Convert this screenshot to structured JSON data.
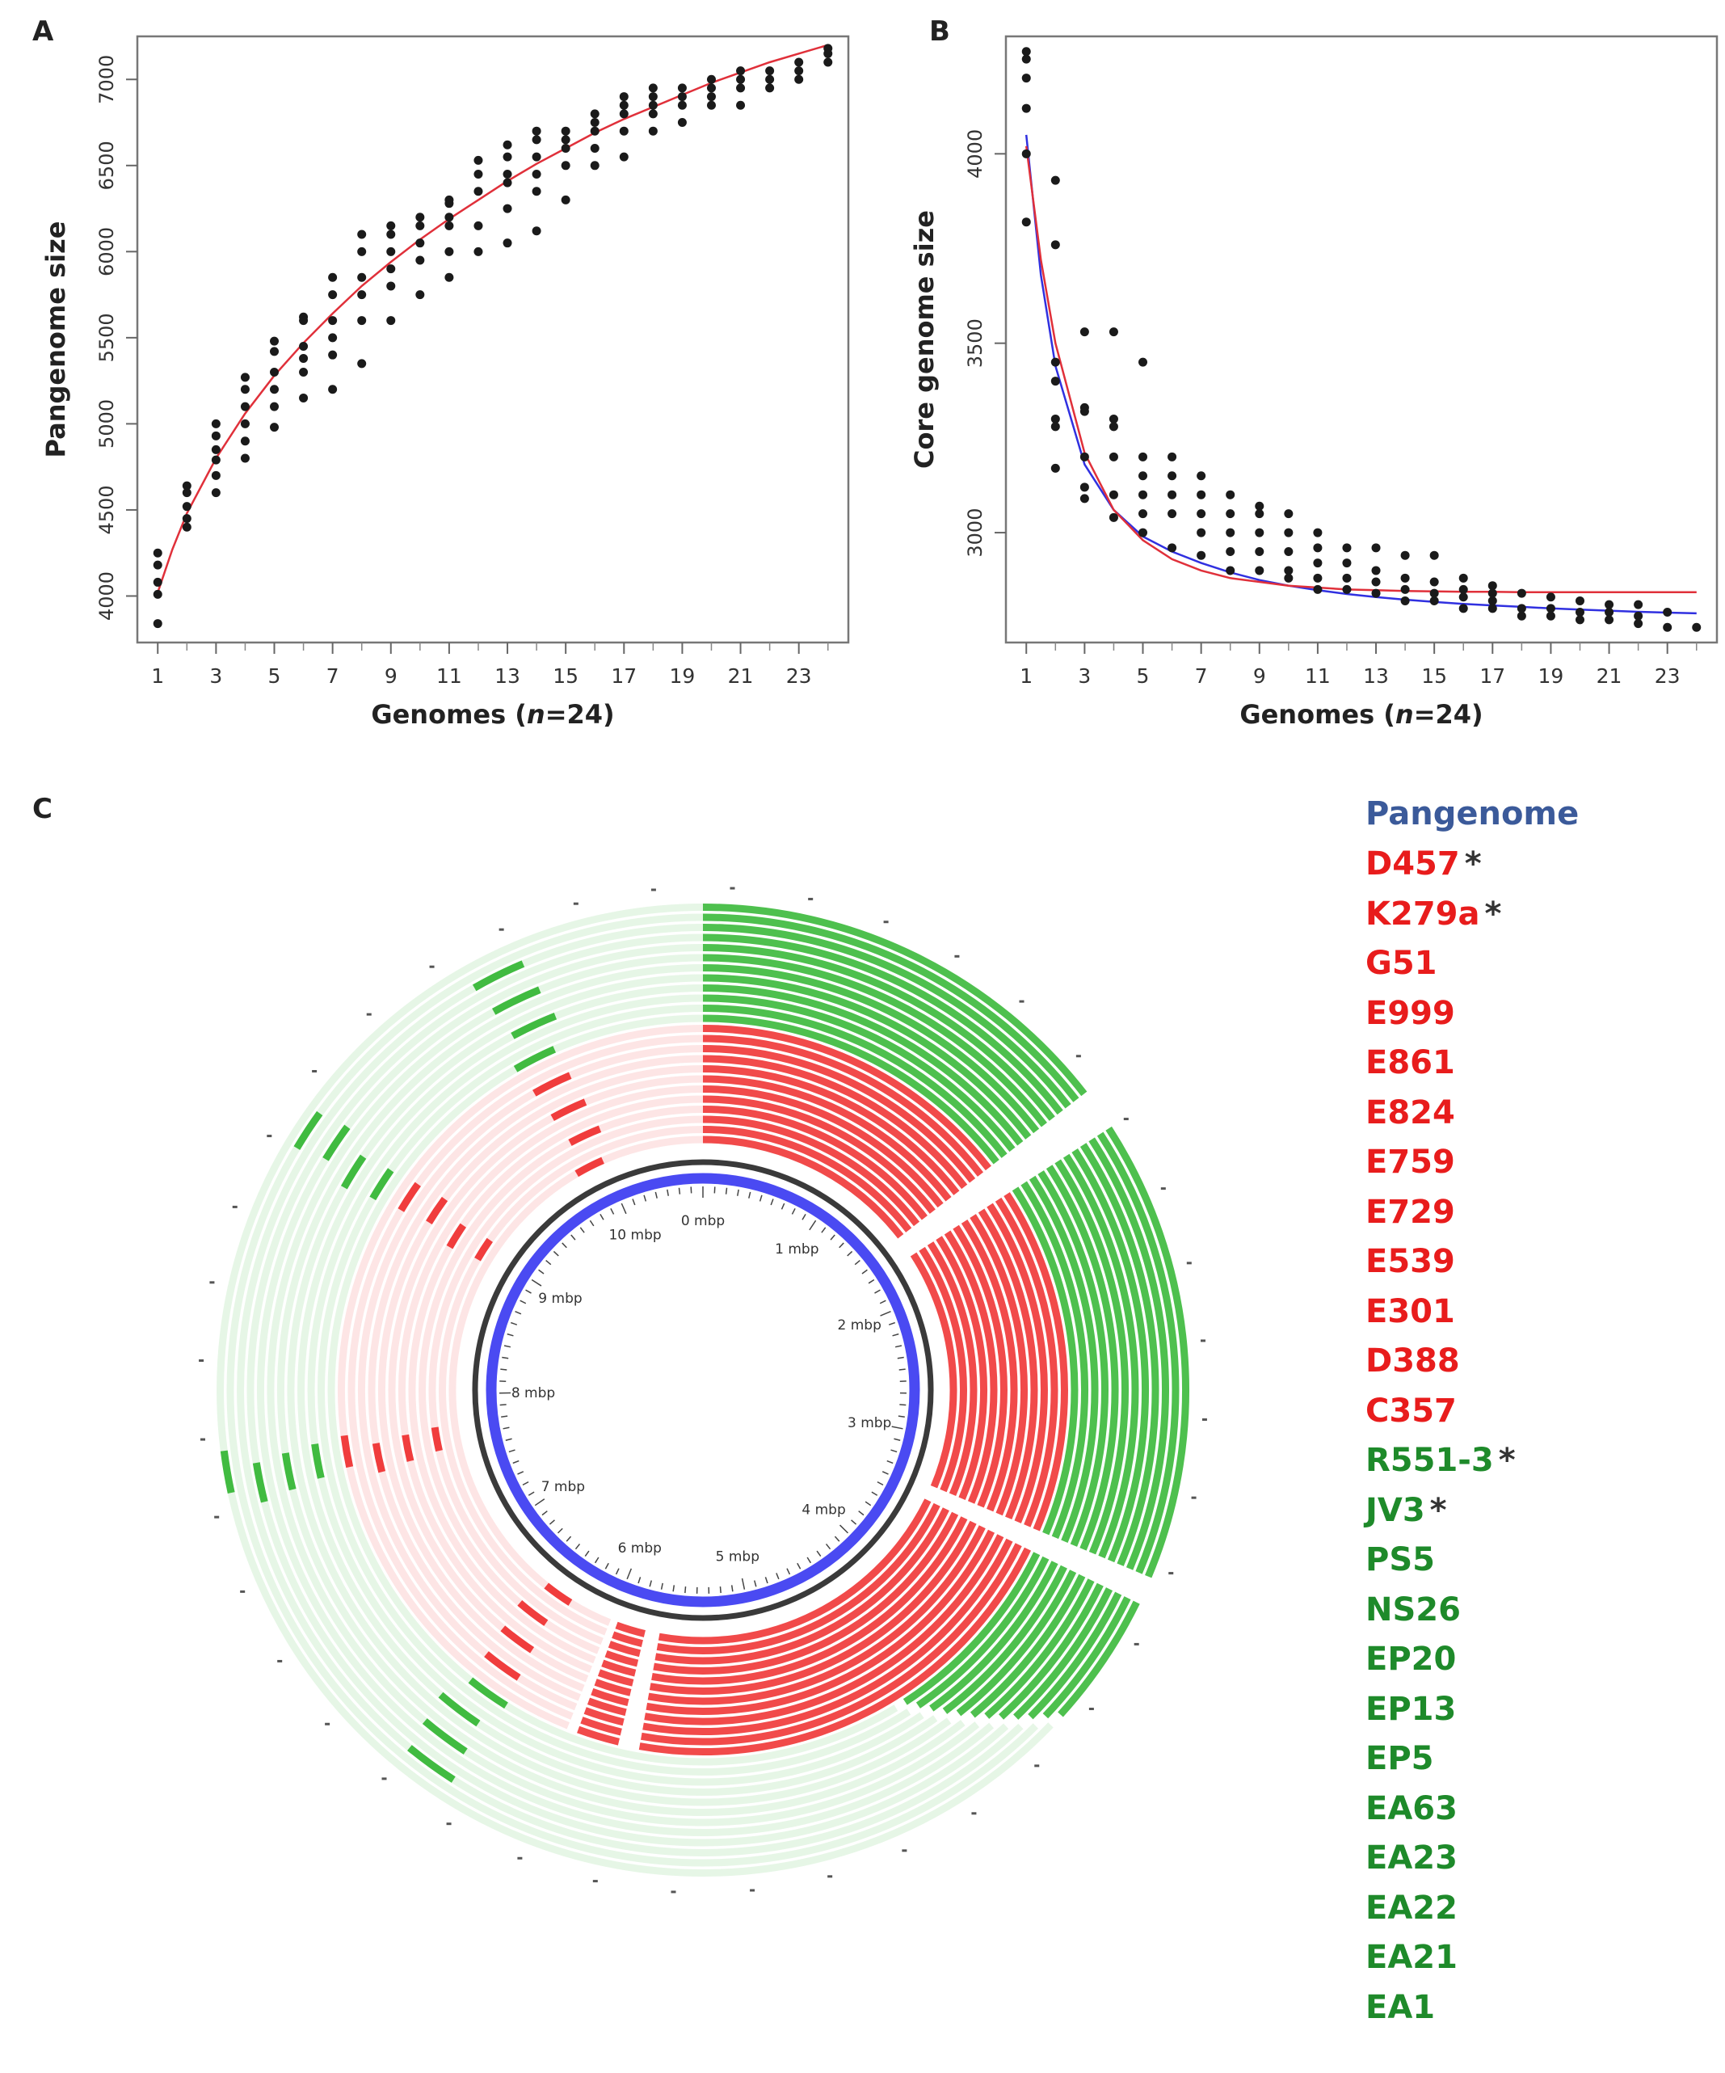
{
  "panels": {
    "A": "A",
    "B": "B",
    "C": "C"
  },
  "colors": {
    "points": "#1a1a1a",
    "fit_red": "#e0303a",
    "fit_blue": "#3030e0",
    "ring_red": "#ee2a2a",
    "ring_green": "#2fb52f",
    "axis_ring_blue": "#4a4af2",
    "axis_ring_dark": "#3a3a3a",
    "legend_blue": "#3b5a9a",
    "legend_red": "#e81c1c",
    "legend_green": "#1e8a2a"
  },
  "chart_data": [
    {
      "id": "A",
      "type": "scatter",
      "xlabel": "Genomes (n=24)",
      "xlabel_prefix": "Genomes (",
      "xlabel_italic": "n",
      "xlabel_suffix": "=24)",
      "ylabel": "Pangenome size",
      "xlim": [
        0.3,
        24.7
      ],
      "ylim": [
        3730,
        7250
      ],
      "xticks": [
        1,
        3,
        5,
        7,
        9,
        11,
        13,
        15,
        17,
        19,
        21,
        23
      ],
      "minor_xticks": [
        2,
        4,
        6,
        8,
        10,
        12,
        14,
        16,
        18,
        20,
        22,
        24
      ],
      "yticks": [
        4000,
        4500,
        5000,
        5500,
        6000,
        6500,
        7000
      ],
      "x": [
        1,
        1,
        1,
        1,
        1,
        2,
        2,
        2,
        2,
        2,
        3,
        3,
        3,
        3,
        3,
        3,
        4,
        4,
        4,
        4,
        4,
        4,
        5,
        5,
        5,
        5,
        5,
        5,
        6,
        6,
        6,
        6,
        6,
        6,
        7,
        7,
        7,
        7,
        7,
        7,
        8,
        8,
        8,
        8,
        8,
        8,
        9,
        9,
        9,
        9,
        9,
        9,
        10,
        10,
        10,
        10,
        10,
        11,
        11,
        11,
        11,
        11,
        11,
        12,
        12,
        12,
        12,
        12,
        13,
        13,
        13,
        13,
        13,
        13,
        14,
        14,
        14,
        14,
        14,
        14,
        15,
        15,
        15,
        15,
        15,
        16,
        16,
        16,
        16,
        16,
        17,
        17,
        17,
        17,
        17,
        18,
        18,
        18,
        18,
        18,
        19,
        19,
        19,
        19,
        20,
        20,
        20,
        20,
        21,
        21,
        21,
        21,
        22,
        22,
        22,
        23,
        23,
        23,
        24,
        24,
        24
      ],
      "y": [
        3840,
        4010,
        4080,
        4180,
        4250,
        4400,
        4450,
        4520,
        4600,
        4640,
        4600,
        4700,
        4790,
        4850,
        4930,
        5000,
        4800,
        4900,
        5000,
        5100,
        5200,
        5270,
        4980,
        5100,
        5200,
        5300,
        5420,
        5480,
        5150,
        5300,
        5380,
        5450,
        5600,
        5620,
        5200,
        5400,
        5500,
        5600,
        5750,
        5850,
        5350,
        5600,
        5750,
        5850,
        6000,
        6100,
        5600,
        5800,
        5900,
        6000,
        6100,
        6150,
        5750,
        5950,
        6050,
        6150,
        6200,
        5850,
        6000,
        6150,
        6200,
        6280,
        6300,
        6000,
        6150,
        6350,
        6450,
        6530,
        6050,
        6250,
        6400,
        6450,
        6550,
        6620,
        6120,
        6350,
        6450,
        6550,
        6650,
        6700,
        6300,
        6500,
        6600,
        6650,
        6700,
        6500,
        6600,
        6700,
        6750,
        6800,
        6550,
        6700,
        6800,
        6850,
        6900,
        6700,
        6800,
        6850,
        6900,
        6950,
        6750,
        6850,
        6900,
        6950,
        6850,
        6900,
        6950,
        7000,
        6850,
        6950,
        7000,
        7050,
        6950,
        7000,
        7050,
        7000,
        7050,
        7100,
        7100,
        7150,
        7180
      ],
      "fit": {
        "name": "power-law fit",
        "x": [
          1,
          1.5,
          2,
          3,
          4,
          5,
          6,
          7,
          8,
          9,
          10,
          11,
          12,
          13,
          14,
          15,
          16,
          17,
          18,
          19,
          20,
          21,
          22,
          23,
          24
        ],
        "y": [
          4020,
          4270,
          4480,
          4800,
          5060,
          5280,
          5470,
          5640,
          5800,
          5940,
          6070,
          6190,
          6300,
          6410,
          6510,
          6600,
          6690,
          6770,
          6840,
          6910,
          6980,
          7040,
          7100,
          7150,
          7200
        ]
      }
    },
    {
      "id": "B",
      "type": "scatter",
      "xlabel": "Genomes (n=24)",
      "xlabel_prefix": "Genomes (",
      "xlabel_italic": "n",
      "xlabel_suffix": "=24)",
      "ylabel": "Core genome size",
      "xlim": [
        0.3,
        24.7
      ],
      "ylim": [
        2710,
        4310
      ],
      "xticks": [
        1,
        3,
        5,
        7,
        9,
        11,
        13,
        15,
        17,
        19,
        21,
        23
      ],
      "minor_xticks": [
        2,
        4,
        6,
        8,
        10,
        12,
        14,
        16,
        18,
        20,
        22,
        24
      ],
      "yticks": [
        3000,
        3500,
        4000
      ],
      "x": [
        1,
        1,
        1,
        1,
        1,
        1,
        2,
        2,
        2,
        2,
        2,
        2,
        2,
        3,
        3,
        3,
        3,
        3,
        3,
        4,
        4,
        4,
        4,
        4,
        4,
        5,
        5,
        5,
        5,
        5,
        5,
        6,
        6,
        6,
        6,
        6,
        7,
        7,
        7,
        7,
        7,
        8,
        8,
        8,
        8,
        8,
        9,
        9,
        9,
        9,
        9,
        10,
        10,
        10,
        10,
        10,
        11,
        11,
        11,
        11,
        11,
        12,
        12,
        12,
        12,
        13,
        13,
        13,
        13,
        14,
        14,
        14,
        14,
        15,
        15,
        15,
        15,
        16,
        16,
        16,
        16,
        17,
        17,
        17,
        17,
        18,
        18,
        18,
        19,
        19,
        19,
        20,
        20,
        20,
        21,
        21,
        21,
        22,
        22,
        22,
        23,
        23,
        24
      ],
      "y": [
        3820,
        4000,
        4120,
        4200,
        4250,
        4270,
        3170,
        3280,
        3300,
        3400,
        3450,
        3760,
        3930,
        3090,
        3120,
        3200,
        3320,
        3330,
        3530,
        3040,
        3100,
        3200,
        3280,
        3300,
        3530,
        3000,
        3050,
        3100,
        3150,
        3200,
        3450,
        2960,
        3050,
        3100,
        3150,
        3200,
        2940,
        3000,
        3050,
        3100,
        3150,
        2900,
        2950,
        3000,
        3050,
        3100,
        2900,
        2950,
        3000,
        3050,
        3070,
        2880,
        2900,
        2950,
        3000,
        3050,
        2850,
        2880,
        2920,
        2960,
        3000,
        2850,
        2880,
        2920,
        2960,
        2840,
        2870,
        2900,
        2960,
        2820,
        2850,
        2880,
        2940,
        2820,
        2840,
        2870,
        2940,
        2800,
        2830,
        2850,
        2880,
        2800,
        2820,
        2840,
        2860,
        2780,
        2800,
        2840,
        2780,
        2800,
        2830,
        2770,
        2790,
        2820,
        2770,
        2790,
        2810,
        2760,
        2780,
        2810,
        2750,
        2790,
        2750
      ],
      "fit": {
        "name": "exponential fit (red)",
        "x": [
          1,
          1.5,
          2,
          3,
          4,
          5,
          6,
          7,
          8,
          9,
          10,
          11,
          12,
          13,
          14,
          15,
          16,
          17,
          18,
          19,
          20,
          21,
          22,
          23,
          24
        ],
        "y": [
          4020,
          3720,
          3500,
          3210,
          3060,
          2980,
          2930,
          2900,
          2880,
          2870,
          2860,
          2855,
          2850,
          2848,
          2846,
          2845,
          2844,
          2844,
          2843,
          2843,
          2843,
          2843,
          2843,
          2843,
          2843
        ]
      },
      "fit2": {
        "name": "power-law fit (blue)",
        "x": [
          1,
          1.5,
          2,
          3,
          4,
          5,
          6,
          7,
          8,
          9,
          10,
          11,
          12,
          13,
          14,
          15,
          16,
          17,
          18,
          19,
          20,
          21,
          22,
          23,
          24
        ],
        "y": [
          4050,
          3680,
          3440,
          3180,
          3060,
          2990,
          2950,
          2920,
          2895,
          2875,
          2860,
          2848,
          2838,
          2830,
          2823,
          2817,
          2812,
          2808,
          2804,
          2800,
          2797,
          2794,
          2791,
          2789,
          2787
        ]
      }
    },
    {
      "id": "C",
      "type": "circular-genome-map",
      "center_title": "Pangenome",
      "axis_unit": "mbp",
      "axis_max_mbp": 10.7,
      "axis_ticks": [
        {
          "mbp": 0,
          "label": "0 mbp"
        },
        {
          "mbp": 1,
          "label": "1 mbp"
        },
        {
          "mbp": 2,
          "label": "2 mbp"
        },
        {
          "mbp": 3,
          "label": "3 mbp"
        },
        {
          "mbp": 4,
          "label": "4 mbp"
        },
        {
          "mbp": 5,
          "label": "5 mbp"
        },
        {
          "mbp": 6,
          "label": "6 mbp"
        },
        {
          "mbp": 7,
          "label": "7 mbp"
        },
        {
          "mbp": 8,
          "label": "8 mbp"
        },
        {
          "mbp": 9,
          "label": "9 mbp"
        },
        {
          "mbp": 10,
          "label": "10 mbp"
        }
      ],
      "rings": [
        {
          "name": "D457",
          "group": "red",
          "star": true
        },
        {
          "name": "K279a",
          "group": "red",
          "star": true
        },
        {
          "name": "G51",
          "group": "red",
          "star": false
        },
        {
          "name": "E999",
          "group": "red",
          "star": false
        },
        {
          "name": "E861",
          "group": "red",
          "star": false
        },
        {
          "name": "E824",
          "group": "red",
          "star": false
        },
        {
          "name": "E759",
          "group": "red",
          "star": false
        },
        {
          "name": "E729",
          "group": "red",
          "star": false
        },
        {
          "name": "E539",
          "group": "red",
          "star": false
        },
        {
          "name": "E301",
          "group": "red",
          "star": false
        },
        {
          "name": "D388",
          "group": "red",
          "star": false
        },
        {
          "name": "C357",
          "group": "red",
          "star": false
        },
        {
          "name": "R551-3",
          "group": "green",
          "star": true
        },
        {
          "name": "JV3",
          "group": "green",
          "star": true
        },
        {
          "name": "PS5",
          "group": "green",
          "star": false
        },
        {
          "name": "NS26",
          "group": "green",
          "star": false
        },
        {
          "name": "EP20",
          "group": "green",
          "star": false
        },
        {
          "name": "EP13",
          "group": "green",
          "star": false
        },
        {
          "name": "EP5",
          "group": "green",
          "star": false
        },
        {
          "name": "EA63",
          "group": "green",
          "star": false
        },
        {
          "name": "EA23",
          "group": "green",
          "star": false
        },
        {
          "name": "EA22",
          "group": "green",
          "star": false
        },
        {
          "name": "EA21",
          "group": "green",
          "star": false
        },
        {
          "name": "EA1",
          "group": "green",
          "star": false
        }
      ]
    }
  ]
}
